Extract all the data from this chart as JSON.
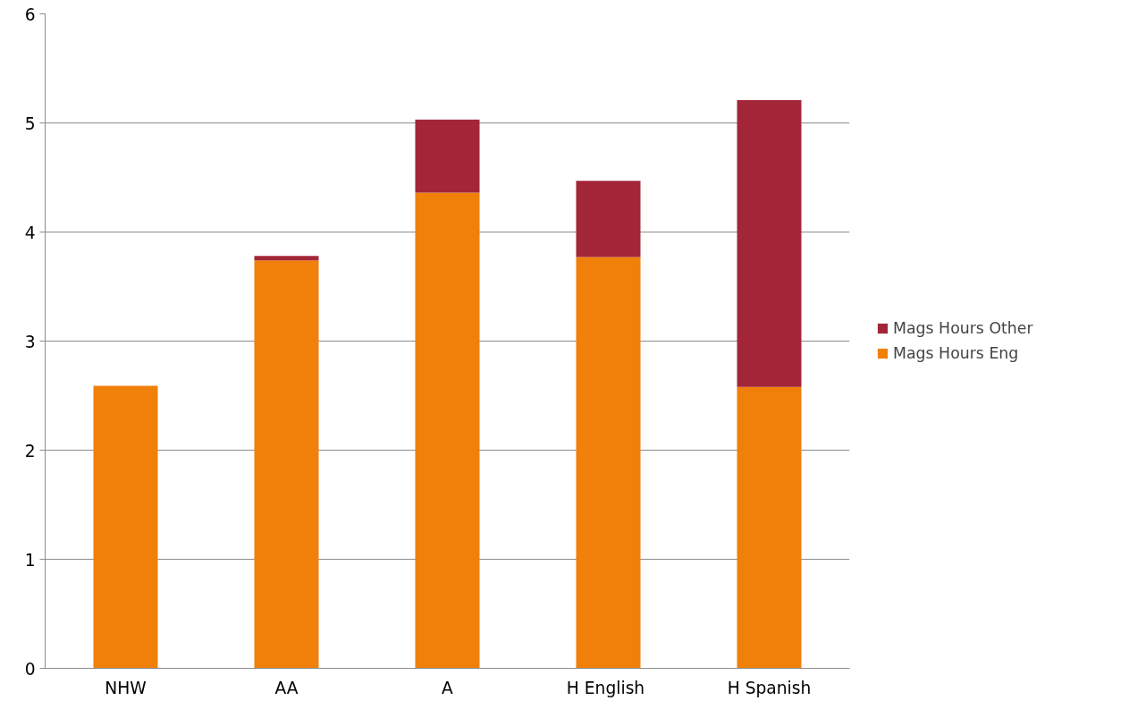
{
  "chart_data": {
    "type": "bar",
    "stacked": true,
    "categories": [
      "NHW",
      "AA",
      "A",
      "H  English",
      "H Spanish"
    ],
    "series": [
      {
        "name": "Mags Hours Eng",
        "color": "#f0800a",
        "values": [
          2.59,
          3.74,
          4.36,
          3.77,
          2.58
        ]
      },
      {
        "name": "Mags Hours Other",
        "color": "#a32638",
        "values": [
          0,
          0.04,
          0.67,
          0.7,
          2.63
        ]
      }
    ],
    "ylim": [
      0,
      6
    ],
    "yticks": [
      0,
      1,
      2,
      3,
      4,
      5,
      6
    ],
    "grid": "y",
    "legend": "right"
  }
}
